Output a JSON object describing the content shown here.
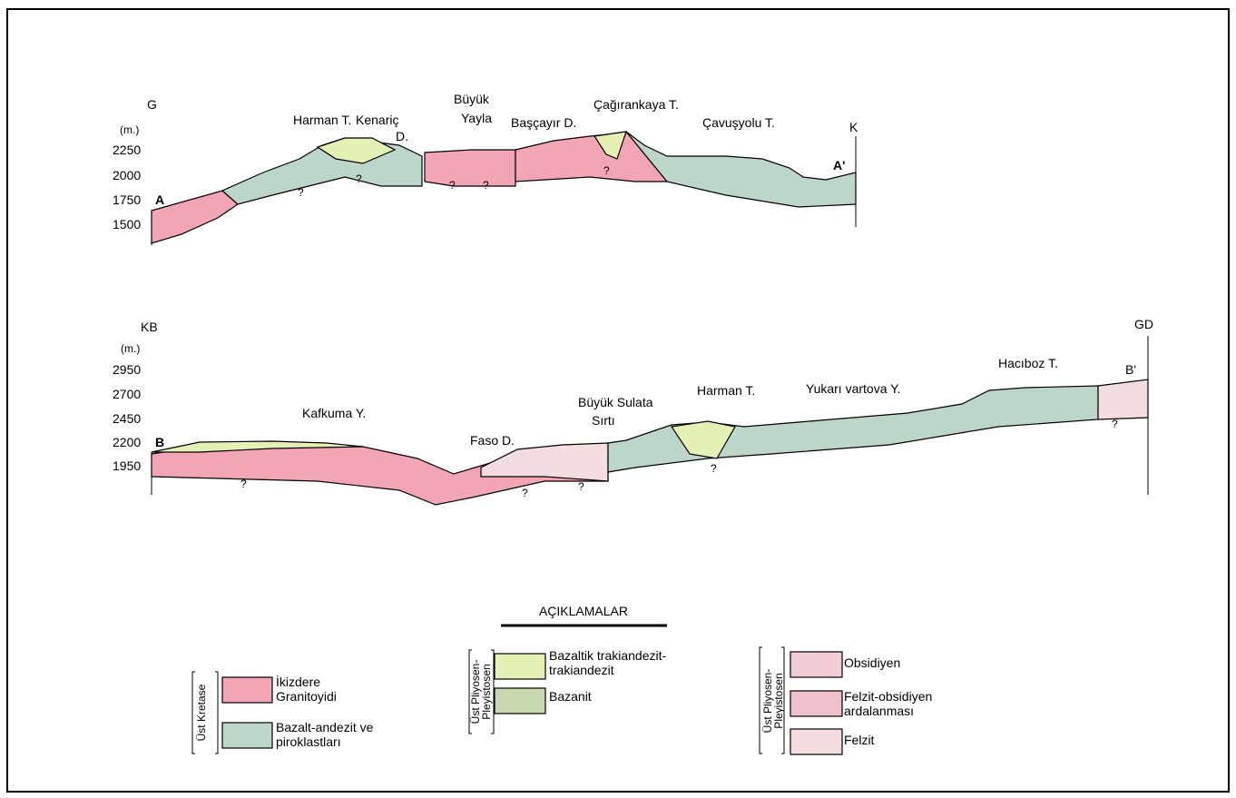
{
  "section_a": {
    "left_label": "G",
    "unit": "(m.)",
    "elevations": [
      "2250",
      "2000",
      "1750",
      "1500"
    ],
    "start": "A",
    "end": "A'",
    "right_label": "K",
    "places": [
      "Harman T.",
      "Kenariç",
      "D.",
      "Büyük",
      "Yayla",
      "Başçayır D.",
      "Çağırankaya T.",
      "Çavuşyolu T."
    ]
  },
  "section_b": {
    "left_label": "KB",
    "unit": "(m.)",
    "elevations": [
      "2950",
      "2700",
      "2450",
      "2200",
      "1950"
    ],
    "start": "B",
    "end": "B'",
    "right_label": "GD",
    "places": [
      "Kafkuma Y.",
      "Faso D.",
      "Büyük Sulata",
      "Sırtı",
      "Harman T.",
      "Yukarı vartova Y.",
      "Hacıboz T."
    ]
  },
  "unknown": "?",
  "legend": {
    "title": "AÇIKLAMALAR",
    "groups": [
      {
        "age": [
          "Üst Kretase"
        ],
        "items": [
          {
            "label": [
              "İkizdere",
              "Granitoyidi"
            ]
          },
          {
            "label": [
              "Bazalt-andezit ve",
              "piroklastları"
            ]
          }
        ]
      },
      {
        "age": [
          "Üst Pliyosen-",
          "Pleyistosen"
        ],
        "items": [
          {
            "label": [
              "Bazaltik trakiandezit-",
              "trakiandezit"
            ]
          },
          {
            "label": [
              "Bazanit"
            ]
          }
        ]
      },
      {
        "age": [
          "Üst Pliyosen-",
          "Pleyistosen"
        ],
        "items": [
          {
            "label": [
              "Obsidiyen"
            ]
          },
          {
            "label": [
              "Felzit-obsidiyen",
              "ardalanması"
            ]
          },
          {
            "label": [
              "Felzit"
            ]
          }
        ]
      }
    ]
  }
}
